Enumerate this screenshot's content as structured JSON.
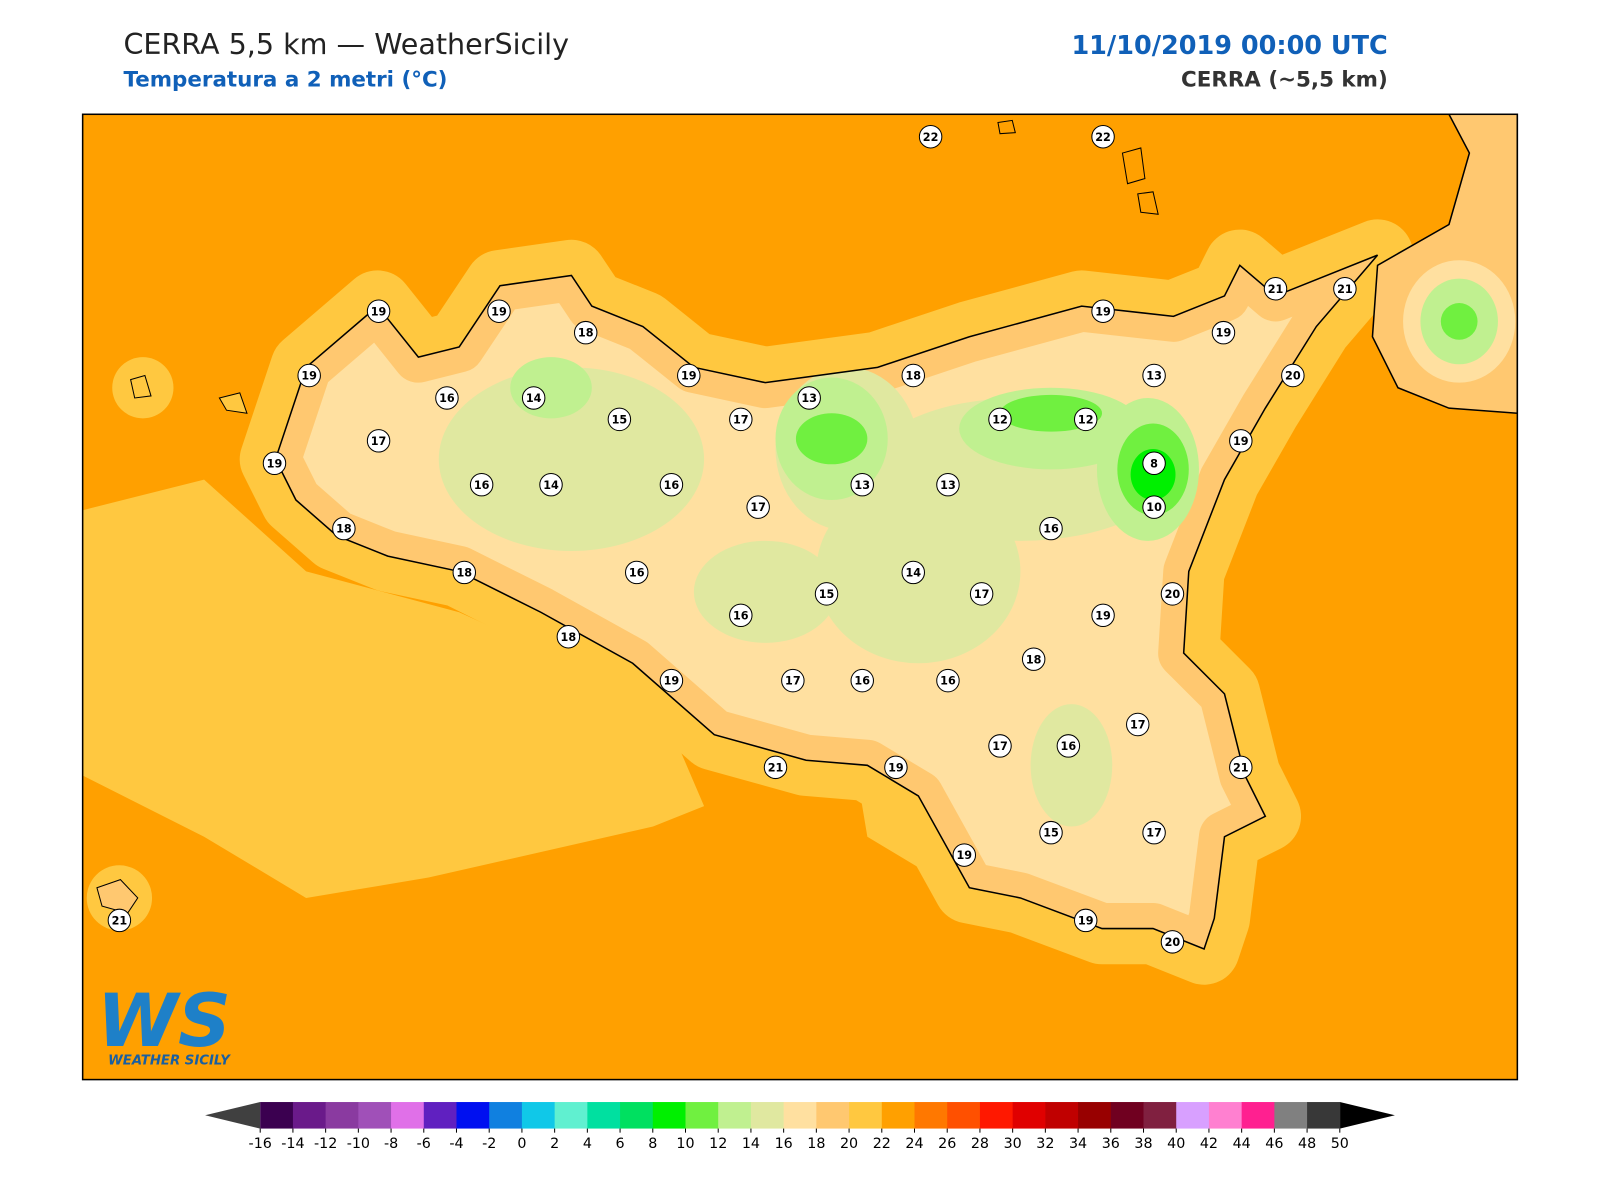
{
  "header": {
    "title": "CERRA 5,5 km — WeatherSicily",
    "subtitle": "Temperatura a 2 metri (°C)",
    "datetime": "11/10/2019 00:00 UTC",
    "model": "CERRA (~5,5 km)"
  },
  "map": {
    "stations": [
      22,
      22,
      19,
      19,
      18,
      19,
      21,
      21,
      19,
      19,
      16,
      14,
      19,
      13,
      18,
      13,
      20,
      15,
      17,
      12,
      12,
      19,
      17,
      19,
      8,
      16,
      14,
      16,
      13,
      13,
      17,
      10,
      18,
      16,
      18,
      16,
      14,
      15,
      17,
      20,
      16,
      19,
      18,
      18,
      19,
      17,
      16,
      16,
      17,
      17,
      16,
      21,
      19,
      21,
      15,
      17,
      19,
      19,
      20,
      21
    ],
    "logo": {
      "mark": "WS",
      "text": "WEATHER SICILY"
    }
  },
  "colorbar": {
    "ticks": [
      -16,
      -14,
      -12,
      -10,
      -8,
      -6,
      -4,
      -2,
      0,
      2,
      4,
      6,
      8,
      10,
      12,
      14,
      16,
      18,
      20,
      22,
      24,
      26,
      28,
      30,
      32,
      34,
      36,
      38,
      40,
      42,
      44,
      46,
      48,
      50
    ],
    "colors": [
      "#3b0050",
      "#6a1a8a",
      "#8a3aa0",
      "#a050b8",
      "#e070e8",
      "#6020c0",
      "#0010f0",
      "#1080e0",
      "#10c8e8",
      "#60f0d0",
      "#00e0a0",
      "#00e060",
      "#00f000",
      "#70f040",
      "#c0f090",
      "#e0e8a0",
      "#ffe0a0",
      "#ffc870",
      "#ffc840",
      "#ffa000",
      "#ff7800",
      "#ff5000",
      "#ff1800",
      "#e00000",
      "#c00000",
      "#980000",
      "#700020",
      "#802040",
      "#d8a0ff",
      "#ff80d0",
      "#ff2090",
      "#808080",
      "#383838"
    ],
    "under_color": "#404040",
    "over_color": "#000000"
  }
}
